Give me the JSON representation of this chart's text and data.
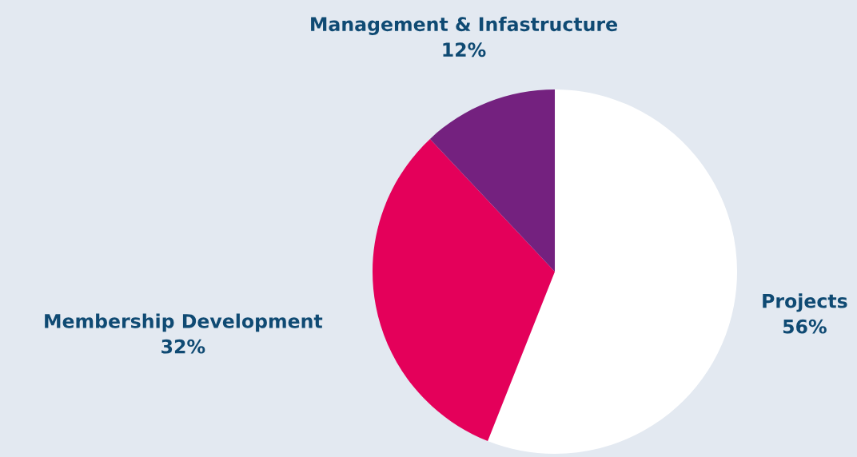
{
  "chart_data": {
    "type": "pie",
    "categories": [
      "Projects",
      "Membership Development",
      "Management & Infastructure"
    ],
    "values": [
      56,
      32,
      12
    ],
    "value_labels": [
      "56%",
      "32%",
      "12%"
    ],
    "colors": [
      "#ffffff",
      "#e4005a",
      "#74217f"
    ],
    "legend": false
  }
}
